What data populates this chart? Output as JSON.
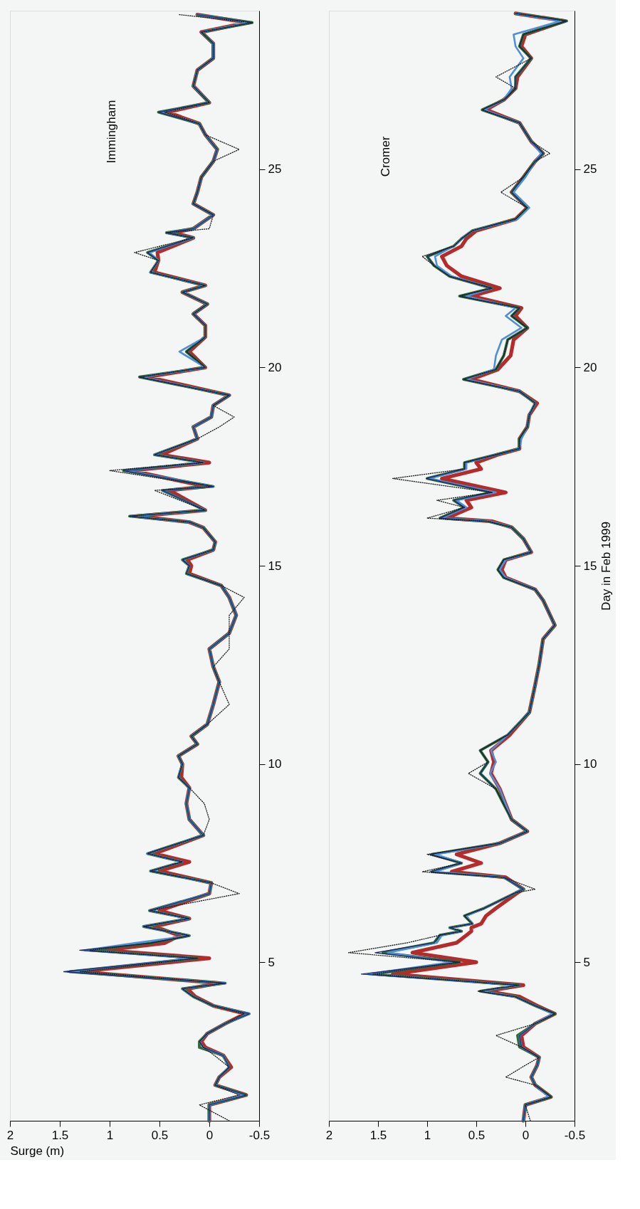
{
  "chart_data": [
    {
      "type": "line",
      "title": "Immingham",
      "xlabel": "Surge (m)",
      "ylim": [
        1,
        29
      ],
      "yticks": [
        5,
        10,
        15,
        20,
        25
      ],
      "xlim": [
        2,
        -0.5
      ],
      "xticks": [
        2,
        1.5,
        1,
        0.5,
        0,
        -0.5
      ],
      "grid": false,
      "series": [
        {
          "color": "#b52a2a",
          "line_style": "solid",
          "values": [
            1.0,
            1.4,
            1.65,
            1.9,
            2.1,
            2.35,
            2.65,
            2.85,
            3.0,
            3.2,
            3.45,
            3.7,
            3.9,
            4.13,
            4.33,
            4.47,
            4.76,
            5.1,
            5.3,
            5.48,
            5.67,
            5.9,
            6.1,
            6.3,
            6.73,
            7.0,
            7.3,
            7.53,
            7.74,
            8.2,
            8.6,
            9.0,
            9.4,
            9.66,
            10.0,
            10.2,
            10.5,
            10.7,
            11.0,
            11.5,
            12.07,
            12.45,
            12.9,
            13.3,
            13.75,
            14.2,
            14.5,
            14.8,
            15.0,
            15.15,
            15.4,
            15.6,
            15.96,
            16.1,
            16.25,
            16.4,
            16.9,
            17.0,
            17.4,
            17.6,
            17.8,
            18.2,
            18.5,
            18.75,
            19.04,
            19.3,
            19.76,
            20.0,
            20.4,
            20.77,
            21.06,
            21.35,
            21.6,
            21.9,
            22.07,
            22.4,
            22.7,
            22.9,
            23.27,
            23.4,
            23.5,
            23.85,
            24.13,
            24.42,
            24.8,
            25.2,
            25.5,
            25.87,
            26.15,
            26.44,
            26.68,
            27.1,
            27.5,
            27.8,
            28.17,
            28.46,
            28.7,
            28.9
          ],
          "x": [
            0.0,
            0.0,
            -0.37,
            -0.06,
            -0.1,
            -0.22,
            -0.14,
            0.04,
            0.08,
            0.02,
            -0.16,
            -0.36,
            -0.04,
            0.14,
            0.22,
            -0.1,
            1.3,
            0.0,
            1.05,
            0.45,
            0.3,
            0.55,
            0.2,
            0.5,
            0.0,
            -0.02,
            0.5,
            0.2,
            0.55,
            0.06,
            0.2,
            0.23,
            0.2,
            0.28,
            0.27,
            0.31,
            0.12,
            0.18,
            0.02,
            -0.04,
            -0.1,
            -0.04,
            0.0,
            -0.2,
            -0.27,
            -0.2,
            -0.12,
            0.2,
            0.18,
            0.22,
            -0.04,
            -0.06,
            0.06,
            0.2,
            0.72,
            0.04,
            0.4,
            0.04,
            0.78,
            0.0,
            0.48,
            0.12,
            0.16,
            -0.02,
            -0.04,
            -0.2,
            0.62,
            0.04,
            0.2,
            0.04,
            0.04,
            0.16,
            0.02,
            0.27,
            0.04,
            0.55,
            0.51,
            0.52,
            0.16,
            0.36,
            0.16,
            -0.04,
            0.16,
            0.12,
            0.08,
            -0.04,
            -0.08,
            0.04,
            0.1,
            0.42,
            0.0,
            0.16,
            0.12,
            -0.04,
            -0.04,
            0.08,
            -0.38,
            0.12
          ]
        },
        {
          "color": "#2e6b3a",
          "line_style": "solid",
          "values": [
            1.0,
            1.4,
            1.65,
            1.9,
            2.1,
            2.35,
            2.65,
            2.85,
            3.0,
            3.2,
            3.45,
            3.7,
            3.9,
            4.13,
            4.33,
            4.47,
            4.76,
            5.1,
            5.3,
            5.48,
            5.67,
            5.9,
            6.1,
            6.3,
            6.73,
            7.0,
            7.3,
            7.53,
            7.74,
            8.2,
            8.6,
            9.0,
            9.4,
            9.66,
            10.0,
            10.2,
            10.5,
            10.7,
            11.0,
            11.5,
            12.07,
            12.45,
            12.9,
            13.3,
            13.75,
            14.2,
            14.5,
            14.8,
            15.0,
            15.15,
            15.4,
            15.6,
            15.96,
            16.1,
            16.25,
            16.4,
            16.9,
            17.0,
            17.4,
            17.6,
            17.8,
            18.2,
            18.5,
            18.75,
            19.04,
            19.3,
            19.76,
            20.0,
            20.4,
            20.77,
            21.06,
            21.35,
            21.6,
            21.9,
            22.07,
            22.4,
            22.7,
            22.9,
            23.27,
            23.4,
            23.5,
            23.85,
            24.13,
            24.42,
            24.8,
            25.2,
            25.5,
            25.87,
            26.15,
            26.44,
            26.68,
            27.1,
            27.5,
            27.8,
            28.17,
            28.46,
            28.7,
            28.9
          ],
          "x": [
            0.0,
            0.0,
            -0.37,
            -0.06,
            -0.1,
            -0.2,
            -0.14,
            0.1,
            0.1,
            0.02,
            -0.16,
            -0.4,
            -0.04,
            0.16,
            0.27,
            -0.16,
            1.4,
            0.12,
            1.2,
            0.59,
            0.2,
            0.66,
            0.2,
            0.6,
            0.0,
            -0.02,
            0.59,
            0.27,
            0.62,
            0.06,
            0.2,
            0.23,
            0.2,
            0.31,
            0.27,
            0.31,
            0.12,
            0.18,
            0.02,
            -0.04,
            -0.1,
            -0.04,
            0.0,
            -0.2,
            -0.27,
            -0.2,
            -0.12,
            0.23,
            0.2,
            0.27,
            -0.04,
            -0.06,
            0.06,
            0.2,
            0.8,
            0.04,
            0.47,
            -0.04,
            0.86,
            0.06,
            0.55,
            0.12,
            0.16,
            -0.02,
            -0.04,
            -0.2,
            0.7,
            0.04,
            0.23,
            0.04,
            0.04,
            0.16,
            0.02,
            0.27,
            0.04,
            0.59,
            0.51,
            0.62,
            0.16,
            0.43,
            0.16,
            -0.04,
            0.16,
            0.12,
            0.08,
            -0.04,
            -0.08,
            0.04,
            0.1,
            0.51,
            0.0,
            0.16,
            0.12,
            -0.04,
            -0.04,
            0.08,
            -0.43,
            0.12
          ]
        },
        {
          "color": "#4f8fd6",
          "line_style": "solid",
          "values": [
            1.0,
            1.4,
            1.65,
            1.9,
            2.1,
            2.35,
            2.65,
            2.85,
            3.0,
            3.2,
            3.45,
            3.7,
            3.9,
            4.13,
            4.33,
            4.47,
            4.76,
            5.1,
            5.3,
            5.48,
            5.67,
            5.9,
            6.1,
            6.3,
            6.73,
            7.0,
            7.3,
            7.53,
            7.74,
            8.2,
            8.6,
            9.0,
            9.4,
            9.66,
            10.0,
            10.2,
            10.5,
            10.7,
            11.0,
            11.5,
            12.07,
            12.45,
            12.9,
            13.3,
            13.75,
            14.2,
            14.5,
            14.8,
            15.0,
            15.15,
            15.4,
            15.6,
            15.96,
            16.1,
            16.25,
            16.4,
            16.9,
            17.0,
            17.4,
            17.6,
            17.8,
            18.2,
            18.5,
            18.75,
            19.04,
            19.3,
            19.76,
            20.0,
            20.4,
            20.77,
            21.06,
            21.35,
            21.6,
            21.9,
            22.07,
            22.4,
            22.7,
            22.9,
            23.27,
            23.4,
            23.5,
            23.85,
            24.13,
            24.42,
            24.8,
            25.2,
            25.5,
            25.87,
            26.15,
            26.44,
            26.68,
            27.1,
            27.5,
            27.8,
            28.17,
            28.46,
            28.7,
            28.9
          ],
          "x": [
            0.0,
            0.0,
            -0.35,
            -0.06,
            -0.1,
            -0.2,
            -0.14,
            0.06,
            0.1,
            0.02,
            -0.16,
            -0.4,
            -0.04,
            0.16,
            0.27,
            -0.16,
            1.42,
            0.15,
            1.25,
            0.75,
            0.2,
            0.66,
            0.2,
            0.6,
            0.0,
            -0.02,
            0.59,
            0.27,
            0.62,
            0.06,
            0.2,
            0.23,
            0.2,
            0.31,
            0.27,
            0.31,
            0.12,
            0.18,
            0.02,
            -0.04,
            -0.1,
            -0.04,
            0.0,
            -0.2,
            -0.27,
            -0.2,
            -0.12,
            0.23,
            0.2,
            0.27,
            -0.04,
            -0.06,
            0.06,
            0.2,
            0.78,
            0.04,
            0.47,
            -0.04,
            0.84,
            0.06,
            0.55,
            0.12,
            0.16,
            -0.02,
            -0.04,
            -0.2,
            0.68,
            0.04,
            0.3,
            0.04,
            0.04,
            0.16,
            0.02,
            0.27,
            0.04,
            0.59,
            0.51,
            0.6,
            0.16,
            0.43,
            0.16,
            -0.04,
            0.16,
            0.12,
            0.08,
            -0.04,
            -0.08,
            0.04,
            0.1,
            0.48,
            0.0,
            0.16,
            0.12,
            -0.04,
            -0.04,
            0.08,
            -0.4,
            0.12
          ]
        },
        {
          "color": "#1a2a6c",
          "line_style": "solid",
          "values": [
            1.0,
            1.4,
            1.65,
            1.9,
            2.1,
            2.35,
            2.65,
            2.85,
            3.0,
            3.2,
            3.45,
            3.7,
            3.9,
            4.13,
            4.33,
            4.47,
            4.76,
            5.1,
            5.3,
            5.48,
            5.67,
            5.9,
            6.1,
            6.3,
            6.73,
            7.0,
            7.3,
            7.53,
            7.74,
            8.2,
            8.6,
            9.0,
            9.4,
            9.66,
            10.0,
            10.2,
            10.5,
            10.7,
            11.0,
            11.5,
            12.07,
            12.45,
            12.9,
            13.3,
            13.75,
            14.2,
            14.5,
            14.8,
            15.0,
            15.15,
            15.4,
            15.6,
            15.96,
            16.1,
            16.25,
            16.4,
            16.9,
            17.0,
            17.4,
            17.6,
            17.8,
            18.2,
            18.5,
            18.75,
            19.04,
            19.3,
            19.76,
            20.0,
            20.4,
            20.77,
            21.06,
            21.35,
            21.6,
            21.9,
            22.07,
            22.4,
            22.7,
            22.9,
            23.27,
            23.4,
            23.5,
            23.85,
            24.13,
            24.42,
            24.8,
            25.2,
            25.5,
            25.87,
            26.15,
            26.44,
            26.68,
            27.1,
            27.5,
            27.8,
            28.17,
            28.46,
            28.7,
            28.9
          ],
          "x": [
            0.0,
            0.0,
            -0.37,
            -0.06,
            -0.1,
            -0.2,
            -0.14,
            0.06,
            0.1,
            0.02,
            -0.16,
            -0.4,
            -0.04,
            0.16,
            0.27,
            -0.16,
            1.46,
            0.12,
            1.3,
            0.59,
            0.2,
            0.66,
            0.2,
            0.6,
            0.0,
            -0.02,
            0.59,
            0.27,
            0.62,
            0.06,
            0.2,
            0.23,
            0.2,
            0.31,
            0.27,
            0.31,
            0.12,
            0.18,
            0.02,
            -0.04,
            -0.1,
            -0.04,
            0.0,
            -0.2,
            -0.27,
            -0.2,
            -0.12,
            0.23,
            0.2,
            0.27,
            -0.04,
            -0.06,
            0.06,
            0.2,
            0.8,
            0.04,
            0.47,
            -0.04,
            0.86,
            0.06,
            0.55,
            0.12,
            0.16,
            -0.02,
            -0.04,
            -0.2,
            0.7,
            0.04,
            0.23,
            0.04,
            0.04,
            0.16,
            0.02,
            0.27,
            0.04,
            0.59,
            0.51,
            0.62,
            0.16,
            0.43,
            0.16,
            -0.04,
            0.16,
            0.12,
            0.08,
            -0.04,
            -0.08,
            0.04,
            0.1,
            0.51,
            0.0,
            0.16,
            0.12,
            -0.04,
            -0.04,
            0.08,
            -0.43,
            0.12
          ]
        },
        {
          "color": "#222222",
          "line_style": "dotted",
          "values": [
            1.0,
            1.4,
            1.65,
            1.9,
            2.1,
            2.35,
            2.65,
            2.85,
            3.0,
            3.2,
            3.45,
            3.7,
            3.9,
            4.13,
            4.33,
            4.47,
            4.76,
            5.1,
            5.3,
            5.48,
            5.67,
            5.9,
            6.1,
            6.3,
            6.73,
            7.0,
            7.3,
            7.53,
            7.74,
            8.2,
            8.6,
            9.0,
            9.4,
            9.66,
            10.0,
            10.2,
            10.5,
            10.7,
            11.0,
            11.5,
            12.07,
            12.45,
            12.9,
            13.3,
            13.75,
            14.2,
            14.5,
            14.8,
            15.0,
            15.15,
            15.4,
            15.6,
            15.96,
            16.1,
            16.25,
            16.4,
            16.9,
            17.0,
            17.4,
            17.6,
            17.8,
            18.2,
            18.5,
            18.75,
            19.04,
            19.3,
            19.76,
            20.0,
            20.4,
            20.77,
            21.06,
            21.35,
            21.6,
            21.9,
            22.07,
            22.4,
            22.7,
            22.9,
            23.27,
            23.4,
            23.5,
            23.85,
            24.13,
            24.42,
            24.8,
            25.2,
            25.5,
            25.87,
            26.15,
            26.44,
            26.68,
            27.1,
            27.5,
            27.8,
            28.17,
            28.46,
            28.7,
            28.9
          ],
          "x": [
            -0.2,
            0.1,
            -0.3,
            -0.06,
            -0.1,
            -0.2,
            -0.05,
            0.06,
            0.1,
            0.02,
            -0.16,
            -0.35,
            -0.04,
            0.16,
            0.27,
            -0.16,
            1.3,
            0.12,
            1.2,
            0.59,
            0.2,
            0.66,
            0.2,
            0.6,
            -0.3,
            -0.02,
            0.59,
            0.27,
            0.62,
            0.06,
            0.0,
            0.05,
            0.2,
            0.31,
            0.27,
            0.31,
            0.12,
            0.18,
            0.02,
            -0.2,
            -0.1,
            -0.04,
            -0.2,
            -0.2,
            -0.2,
            -0.35,
            -0.12,
            0.23,
            0.2,
            0.27,
            -0.04,
            -0.06,
            0.06,
            0.2,
            0.8,
            0.04,
            0.55,
            -0.04,
            1.0,
            0.06,
            0.55,
            0.12,
            -0.1,
            -0.25,
            -0.04,
            -0.2,
            0.7,
            0.04,
            0.23,
            0.04,
            0.04,
            0.16,
            0.02,
            0.27,
            0.04,
            0.59,
            0.51,
            0.75,
            0.16,
            0.43,
            0.0,
            -0.04,
            0.16,
            0.12,
            0.08,
            -0.04,
            -0.3,
            0.04,
            0.1,
            0.45,
            0.0,
            0.16,
            0.12,
            -0.04,
            -0.04,
            0.08,
            -0.43,
            0.3
          ]
        }
      ]
    },
    {
      "type": "line",
      "title": "Cromer",
      "ylabel": "Day in Feb 1999",
      "ylim": [
        1,
        29
      ],
      "yticks": [
        5,
        10,
        15,
        20,
        25
      ],
      "xlim": [
        2,
        -0.5
      ],
      "xticks": [
        2,
        1.5,
        1,
        0.5,
        0,
        -0.5
      ],
      "grid": false,
      "series": [
        {
          "color": "#b52a2a",
          "line_style": "solid",
          "values": [
            1.0,
            1.4,
            1.6,
            1.9,
            2.1,
            2.4,
            2.6,
            2.86,
            3.15,
            3.45,
            3.7,
            3.9,
            4.13,
            4.27,
            4.42,
            4.7,
            5.0,
            5.24,
            5.49,
            5.68,
            5.78,
            5.87,
            5.97,
            6.17,
            6.36,
            6.75,
            6.84,
            7.14,
            7.28,
            7.5,
            7.72,
            8.0,
            8.3,
            8.6,
            8.98,
            9.37,
            9.76,
            10.05,
            10.34,
            10.73,
            11.3,
            12.0,
            12.5,
            13.15,
            13.5,
            14.13,
            14.4,
            14.7,
            14.9,
            15.15,
            15.34,
            15.68,
            15.97,
            16.12,
            16.2,
            16.47,
            16.65,
            16.85,
            17.2,
            17.44,
            17.6,
            17.8,
            17.95,
            18.2,
            18.5,
            18.8,
            19.1,
            19.4,
            19.7,
            19.95,
            20.3,
            20.7,
            21.0,
            21.3,
            21.5,
            21.8,
            22.0,
            22.3,
            22.57,
            22.8,
            23.06,
            23.25,
            23.45,
            23.74,
            24.03,
            24.42,
            24.8,
            25.2,
            25.4,
            25.7,
            26.17,
            26.5,
            26.75,
            27.04,
            27.33,
            27.8,
            28.1,
            28.4,
            28.74,
            28.93
          ],
          "x": [
            0.02,
            0,
            -0.26,
            -0.1,
            -0.06,
            -0.12,
            -0.14,
            0.02,
            0.04,
            -0.1,
            -0.3,
            -0.12,
            0.06,
            0.4,
            0.02,
            1.35,
            0.5,
            1.15,
            0.7,
            0.6,
            0.55,
            0.55,
            0.45,
            0.4,
            0.3,
            0.08,
            0.02,
            0.2,
            0.75,
            0.45,
            0.7,
            0.26,
            -0.02,
            0.14,
            0.2,
            0.26,
            0.35,
            0.32,
            0.35,
            0.16,
            -0.04,
            -0.1,
            -0.14,
            -0.18,
            -0.3,
            -0.18,
            -0.1,
            0.2,
            0.24,
            0.2,
            -0.06,
            0.02,
            0.14,
            0.34,
            0.8,
            0.55,
            0.6,
            0.2,
            0.85,
            0.45,
            0.5,
            0.28,
            0.06,
            0.06,
            -0.02,
            -0.04,
            -0.12,
            0.06,
            0.55,
            0.28,
            0.15,
            0.12,
            -0.02,
            0.1,
            0.04,
            0.55,
            0.26,
            0.65,
            0.8,
            0.85,
            0.65,
            0.6,
            0.5,
            0.1,
            -0.02,
            0.14,
            0.02,
            -0.1,
            -0.18,
            -0.06,
            0.06,
            0.4,
            0.22,
            0.1,
            0.08,
            -0.06,
            0.04,
            0.0,
            -0.4,
            0.1
          ]
        },
        {
          "color": "#2e6b3a",
          "line_style": "solid",
          "values": [
            1.0,
            1.4,
            1.6,
            1.9,
            2.1,
            2.4,
            2.6,
            2.86,
            3.15,
            3.45,
            3.7,
            3.9,
            4.13,
            4.27,
            4.42,
            4.7,
            5.0,
            5.24,
            5.49,
            5.68,
            5.78,
            5.87,
            5.97,
            6.17,
            6.36,
            6.75,
            6.84,
            7.14,
            7.28,
            7.5,
            7.72,
            8.0,
            8.3,
            8.6,
            8.98,
            9.37,
            9.76,
            10.05,
            10.34,
            10.73,
            11.3,
            12.0,
            12.5,
            13.15,
            13.5,
            14.13,
            14.4,
            14.7,
            14.9,
            15.15,
            15.34,
            15.68,
            15.97,
            16.12,
            16.2,
            16.47,
            16.65,
            16.85,
            17.2,
            17.44,
            17.6,
            17.8,
            17.95,
            18.2,
            18.5,
            18.8,
            19.1,
            19.4,
            19.7,
            19.95,
            20.3,
            20.7,
            21.0,
            21.3,
            21.5,
            21.8,
            22.0,
            22.3,
            22.57,
            22.8,
            23.06,
            23.25,
            23.45,
            23.74,
            24.03,
            24.42,
            24.8,
            25.2,
            25.4,
            25.7,
            26.17,
            26.5,
            26.75,
            27.04,
            27.33,
            27.8,
            28.1,
            28.4,
            28.74,
            28.93
          ],
          "x": [
            0.02,
            0,
            -0.26,
            -0.1,
            -0.06,
            -0.12,
            -0.14,
            0.06,
            0.08,
            -0.1,
            -0.3,
            -0.1,
            0.1,
            0.46,
            0.06,
            1.55,
            0.67,
            1.45,
            0.93,
            0.87,
            0.65,
            0.77,
            0.54,
            0.62,
            0.42,
            0.1,
            0.02,
            0.22,
            0.95,
            0.65,
            0.95,
            0.26,
            -0.02,
            0.14,
            0.22,
            0.3,
            0.46,
            0.38,
            0.46,
            0.18,
            -0.04,
            -0.1,
            -0.14,
            -0.18,
            -0.3,
            -0.18,
            -0.1,
            0.22,
            0.28,
            0.22,
            -0.06,
            0.02,
            0.14,
            0.38,
            0.87,
            0.62,
            0.73,
            0.34,
            1.0,
            0.62,
            0.62,
            0.3,
            0.06,
            0.06,
            -0.02,
            -0.04,
            -0.1,
            0.06,
            0.63,
            0.3,
            0.22,
            0.18,
            -0.02,
            0.14,
            0.06,
            0.67,
            0.34,
            0.77,
            0.93,
            1.0,
            0.73,
            0.65,
            0.54,
            0.1,
            -0.02,
            0.14,
            0.02,
            -0.1,
            -0.18,
            -0.06,
            0.06,
            0.44,
            0.22,
            0.1,
            0.1,
            -0.06,
            0.06,
            0.02,
            -0.42,
            0.1
          ]
        },
        {
          "color": "#4f8fd6",
          "line_style": "solid",
          "values": [
            1.0,
            1.4,
            1.6,
            1.9,
            2.1,
            2.4,
            2.6,
            2.86,
            3.15,
            3.45,
            3.7,
            3.9,
            4.13,
            4.27,
            4.42,
            4.7,
            5.0,
            5.24,
            5.49,
            5.68,
            5.78,
            5.87,
            5.97,
            6.17,
            6.36,
            6.75,
            6.84,
            7.14,
            7.28,
            7.5,
            7.72,
            8.0,
            8.3,
            8.6,
            8.98,
            9.37,
            9.76,
            10.05,
            10.34,
            10.73,
            11.3,
            12.0,
            12.5,
            13.15,
            13.5,
            14.13,
            14.4,
            14.7,
            14.9,
            15.15,
            15.34,
            15.68,
            15.97,
            16.12,
            16.2,
            16.47,
            16.65,
            16.85,
            17.2,
            17.44,
            17.6,
            17.8,
            17.95,
            18.2,
            18.5,
            18.8,
            19.1,
            19.4,
            19.7,
            19.95,
            20.3,
            20.7,
            21.0,
            21.3,
            21.5,
            21.8,
            22.0,
            22.3,
            22.57,
            22.8,
            23.06,
            23.25,
            23.45,
            23.74,
            24.03,
            24.42,
            24.8,
            25.2,
            25.4,
            25.7,
            26.17,
            26.5,
            26.75,
            27.04,
            27.33,
            27.8,
            28.1,
            28.4,
            28.74,
            28.93
          ],
          "x": [
            0.02,
            0,
            -0.24,
            -0.1,
            -0.06,
            -0.12,
            -0.14,
            0.04,
            0.06,
            -0.1,
            -0.28,
            -0.1,
            0.1,
            0.45,
            0.06,
            1.6,
            0.75,
            1.4,
            0.9,
            0.85,
            0.65,
            0.77,
            0.54,
            0.6,
            0.42,
            0.1,
            0.02,
            0.22,
            0.92,
            0.65,
            0.92,
            0.26,
            -0.02,
            0.14,
            0.2,
            0.26,
            0.36,
            0.3,
            0.35,
            0.18,
            -0.04,
            -0.1,
            -0.14,
            -0.18,
            -0.3,
            -0.18,
            -0.1,
            0.2,
            0.26,
            0.2,
            -0.06,
            0.02,
            0.14,
            0.36,
            0.85,
            0.6,
            0.7,
            0.3,
            0.98,
            0.6,
            0.6,
            0.3,
            0.06,
            0.04,
            -0.02,
            -0.04,
            -0.1,
            0.06,
            0.6,
            0.32,
            0.3,
            0.24,
            0.04,
            0.2,
            0.1,
            0.6,
            0.34,
            0.75,
            0.9,
            0.92,
            0.73,
            0.65,
            0.54,
            0.08,
            -0.04,
            0.12,
            0.0,
            -0.1,
            -0.16,
            -0.06,
            0.06,
            0.42,
            0.22,
            0.14,
            0.16,
            0.02,
            0.1,
            0.12,
            -0.36,
            0.1
          ]
        },
        {
          "color": "#1a2a6c",
          "line_style": "solid",
          "values": [
            1.0,
            1.4,
            1.6,
            1.9,
            2.1,
            2.4,
            2.6,
            2.86,
            3.15,
            3.45,
            3.7,
            3.9,
            4.13,
            4.27,
            4.42,
            4.7,
            5.0,
            5.24,
            5.49,
            5.68,
            5.78,
            5.87,
            5.97,
            6.17,
            6.36,
            6.75,
            6.84,
            7.14,
            7.28,
            7.5,
            7.72,
            8.0,
            8.3,
            8.6,
            8.98,
            9.37,
            9.76,
            10.05,
            10.34,
            10.73,
            11.3,
            12.0,
            12.5,
            13.15,
            13.5,
            14.13,
            14.4,
            14.7,
            14.9,
            15.15,
            15.34,
            15.68,
            15.97,
            16.12,
            16.2,
            16.47,
            16.65,
            16.85,
            17.2,
            17.44,
            17.6,
            17.8,
            17.95,
            18.2,
            18.5,
            18.8,
            19.1,
            19.4,
            19.7,
            19.95,
            20.3,
            20.7,
            21.0,
            21.3,
            21.5,
            21.8,
            22.0,
            22.3,
            22.57,
            22.8,
            23.06,
            23.25,
            23.45,
            23.74,
            24.03,
            24.42,
            24.8,
            25.2,
            25.4,
            25.7,
            26.17,
            26.5,
            26.75,
            27.04,
            27.33,
            27.8,
            28.1,
            28.4,
            28.74,
            28.93
          ],
          "x": [
            0.02,
            0,
            -0.26,
            -0.1,
            -0.06,
            -0.12,
            -0.14,
            0.04,
            0.06,
            -0.1,
            -0.3,
            -0.1,
            0.1,
            0.48,
            0.06,
            1.67,
            0.67,
            1.53,
            0.93,
            0.87,
            0.65,
            0.77,
            0.54,
            0.62,
            0.42,
            0.1,
            0.02,
            0.22,
            0.97,
            0.65,
            0.97,
            0.26,
            -0.02,
            0.14,
            0.22,
            0.3,
            0.46,
            0.38,
            0.46,
            0.18,
            -0.04,
            -0.1,
            -0.14,
            -0.18,
            -0.3,
            -0.18,
            -0.1,
            0.22,
            0.28,
            0.22,
            -0.06,
            0.02,
            0.14,
            0.38,
            0.87,
            0.62,
            0.73,
            0.34,
            1.01,
            0.62,
            0.62,
            0.3,
            0.06,
            0.06,
            -0.02,
            -0.04,
            -0.1,
            0.06,
            0.63,
            0.3,
            0.22,
            0.18,
            -0.02,
            0.14,
            0.06,
            0.67,
            0.34,
            0.77,
            0.93,
            1.0,
            0.73,
            0.65,
            0.54,
            0.1,
            -0.02,
            0.14,
            0.02,
            -0.1,
            -0.18,
            -0.06,
            0.06,
            0.44,
            0.22,
            0.1,
            0.1,
            -0.06,
            0.06,
            0.02,
            -0.42,
            0.1
          ]
        },
        {
          "color": "#222222",
          "line_style": "dotted",
          "values": [
            1.0,
            1.4,
            1.6,
            1.9,
            2.1,
            2.4,
            2.6,
            2.86,
            3.15,
            3.45,
            3.7,
            3.9,
            4.13,
            4.27,
            4.42,
            4.7,
            5.0,
            5.24,
            5.49,
            5.68,
            5.78,
            5.87,
            5.97,
            6.17,
            6.36,
            6.75,
            6.84,
            7.14,
            7.28,
            7.5,
            7.72,
            8.0,
            8.3,
            8.6,
            8.98,
            9.37,
            9.76,
            10.05,
            10.34,
            10.73,
            11.3,
            12.0,
            12.5,
            13.15,
            13.5,
            14.13,
            14.4,
            14.7,
            14.9,
            15.15,
            15.34,
            15.68,
            15.97,
            16.12,
            16.2,
            16.47,
            16.65,
            16.85,
            17.2,
            17.44,
            17.6,
            17.8,
            17.95,
            18.2,
            18.5,
            18.8,
            19.1,
            19.4,
            19.7,
            19.95,
            20.3,
            20.7,
            21.0,
            21.3,
            21.5,
            21.8,
            22.0,
            22.3,
            22.57,
            22.8,
            23.06,
            23.25,
            23.45,
            23.74,
            24.03,
            24.42,
            24.8,
            25.2,
            25.4,
            25.7,
            26.17,
            26.5,
            26.75,
            27.04,
            27.33,
            27.8,
            28.1,
            28.4,
            28.74,
            28.93
          ],
          "x": [
            -0.05,
            0,
            -0.26,
            -0.1,
            0.2,
            0.0,
            -0.14,
            0.04,
            0.3,
            -0.1,
            -0.3,
            -0.1,
            0.1,
            0.48,
            0.06,
            1.55,
            0.67,
            1.8,
            1.2,
            0.87,
            0.65,
            0.77,
            0.54,
            0.62,
            0.42,
            0.1,
            -0.1,
            0.22,
            1.05,
            0.65,
            1.0,
            0.26,
            -0.02,
            0.14,
            0.22,
            0.3,
            0.58,
            0.38,
            0.46,
            0.18,
            -0.04,
            -0.1,
            -0.14,
            -0.18,
            -0.3,
            -0.18,
            -0.1,
            0.22,
            0.28,
            0.22,
            -0.06,
            0.02,
            0.14,
            0.38,
            1.0,
            0.62,
            0.9,
            0.34,
            1.35,
            0.62,
            0.62,
            0.3,
            0.06,
            0.06,
            -0.02,
            -0.04,
            -0.1,
            0.06,
            0.63,
            0.3,
            0.22,
            0.18,
            -0.02,
            0.14,
            0.06,
            0.67,
            0.34,
            0.77,
            0.93,
            1.05,
            0.73,
            0.65,
            0.54,
            0.1,
            -0.02,
            0.25,
            0.02,
            -0.1,
            -0.25,
            -0.06,
            0.06,
            0.44,
            0.22,
            0.1,
            0.3,
            -0.06,
            0.06,
            0.02,
            -0.42,
            0.1
          ]
        }
      ]
    }
  ]
}
